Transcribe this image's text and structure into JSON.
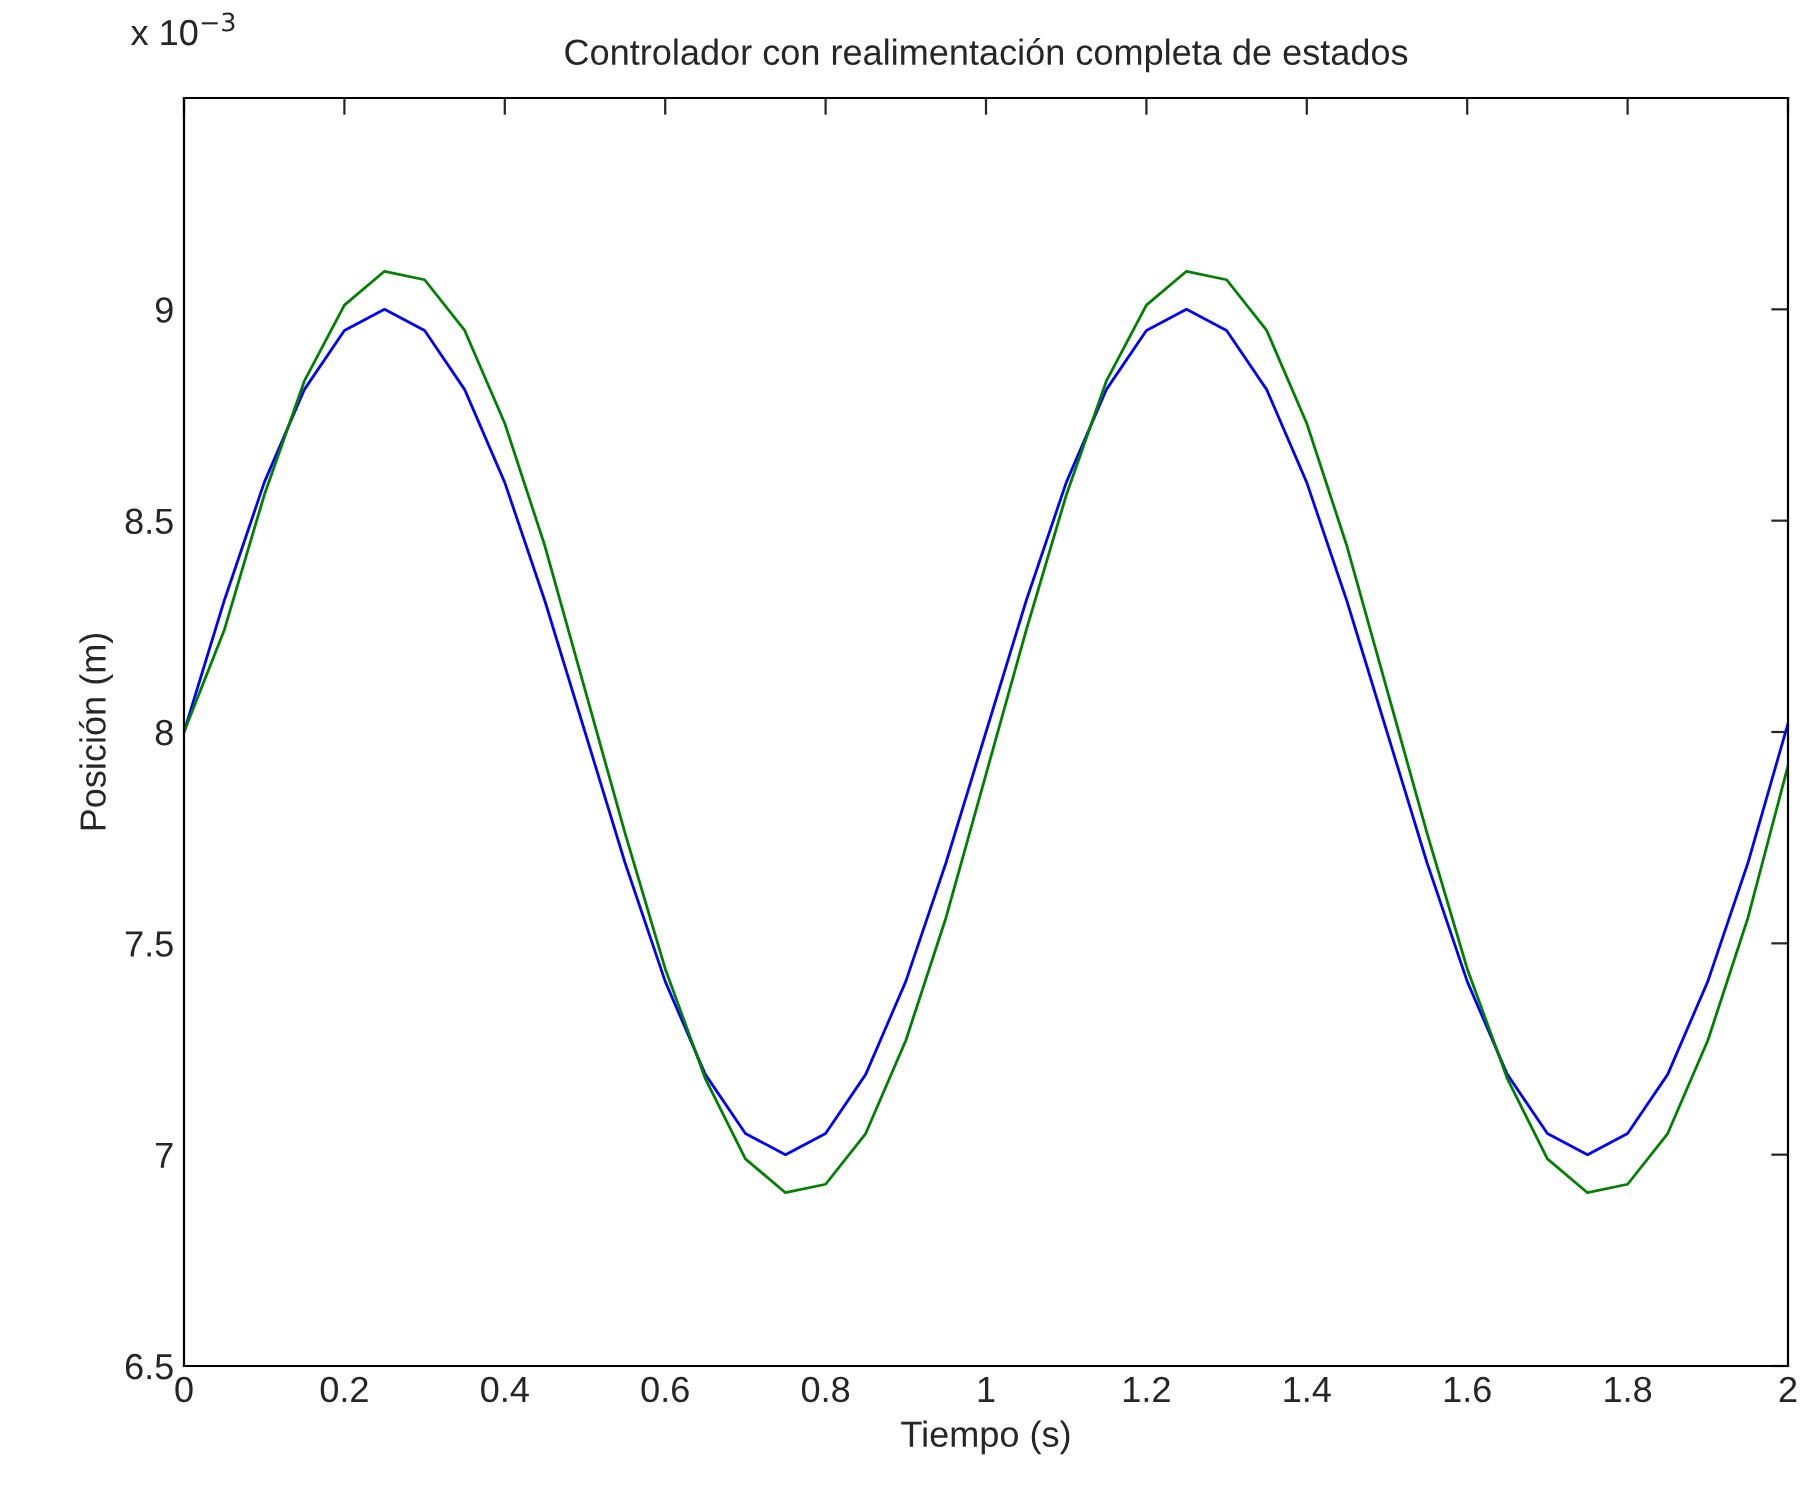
{
  "chart_data": {
    "type": "line",
    "title": "Controlador con realimentación completa de estados",
    "xlabel": "Tiempo (s)",
    "ylabel": "Posición (m)",
    "annotations": [
      "x 10$^{−3}$"
    ],
    "x": [
      0,
      0.05,
      0.1,
      0.15,
      0.2,
      0.25,
      0.3,
      0.35,
      0.4,
      0.45,
      0.5,
      0.55,
      0.6,
      0.65,
      0.7,
      0.75,
      0.8,
      0.85,
      0.9,
      0.95,
      1.0,
      1.05,
      1.1,
      1.15,
      1.2,
      1.25,
      1.3,
      1.35,
      1.4,
      1.45,
      1.5,
      1.55,
      1.6,
      1.65,
      1.7,
      1.75,
      1.8,
      1.85,
      1.9,
      1.95,
      2.0
    ],
    "series": [
      {
        "color": "#0000ff",
        "values": [
          8.0,
          8.31,
          8.59,
          8.81,
          8.95,
          9.0,
          8.95,
          8.81,
          8.59,
          8.31,
          8.0,
          7.69,
          7.41,
          7.19,
          7.05,
          7.0,
          7.05,
          7.19,
          7.41,
          7.69,
          8.0,
          8.31,
          8.59,
          8.81,
          8.95,
          9.0,
          8.95,
          8.81,
          8.59,
          8.31,
          8.0,
          7.69,
          7.41,
          7.19,
          7.05,
          7.0,
          7.05,
          7.19,
          7.41,
          7.69,
          8.02
        ]
      },
      {
        "color": "#008000",
        "values": [
          8.0,
          8.24,
          8.56,
          8.83,
          9.01,
          9.09,
          9.07,
          8.95,
          8.73,
          8.44,
          8.1,
          7.76,
          7.44,
          7.18,
          6.99,
          6.91,
          6.93,
          7.05,
          7.27,
          7.56,
          7.9,
          8.24,
          8.56,
          8.83,
          9.01,
          9.09,
          9.07,
          8.95,
          8.73,
          8.44,
          8.1,
          7.76,
          7.44,
          7.18,
          6.99,
          6.91,
          6.93,
          7.05,
          7.27,
          7.56,
          7.92
        ]
      }
    ],
    "xlim": [
      0,
      2
    ],
    "xticks": [
      0,
      0.2,
      0.4,
      0.6,
      0.8,
      1,
      1.2,
      1.4,
      1.6,
      1.8,
      2
    ],
    "ylim": [
      6.5,
      9.5
    ],
    "yticks": [
      6.5,
      7,
      7.5,
      8,
      8.5,
      9
    ],
    "grid": false,
    "legend": false
  }
}
